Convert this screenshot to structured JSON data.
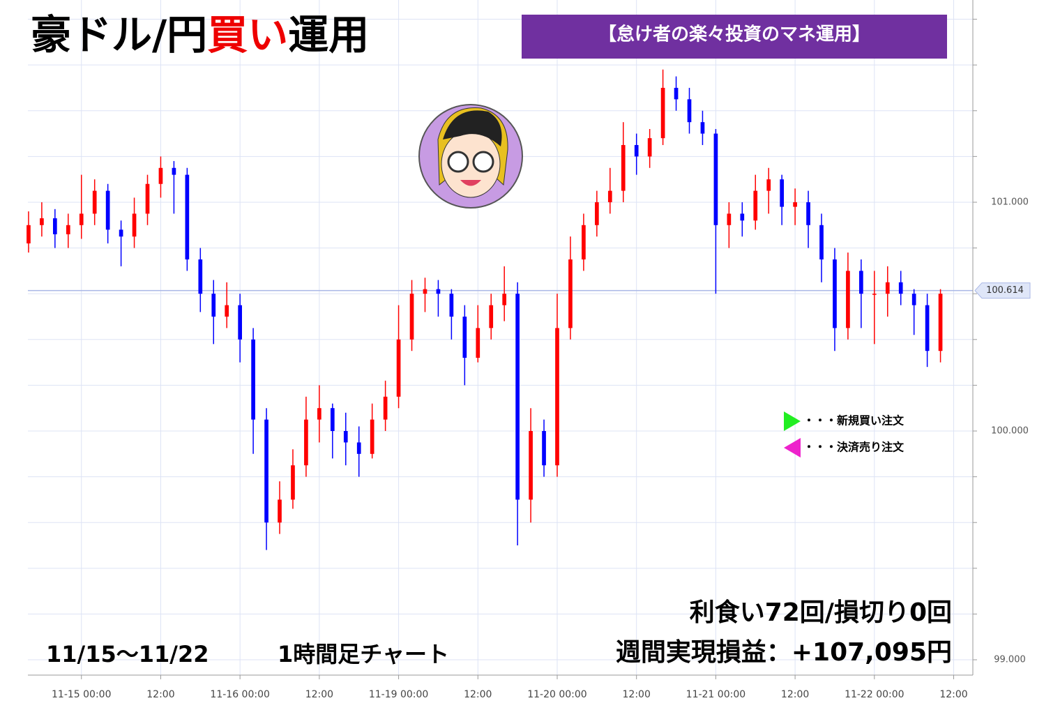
{
  "chart_data": {
    "type": "candlestick",
    "title_parts": [
      {
        "text": "豪ドル/円",
        "color": "#000000"
      },
      {
        "text": "買い",
        "color": "#ee0000"
      },
      {
        "text": "運用",
        "color": "#000000"
      }
    ],
    "banner": "【怠け者の楽々投資のマネ運用】",
    "period": "11/15～11/22",
    "timeframe": "1時間足チャート",
    "stats": "利食い72回/損切り0回",
    "profit": "週間実現損益：+107,095円",
    "up_color": "#ff0000",
    "down_color": "#0000ff",
    "x": [
      -8,
      -6,
      -4,
      -2,
      0,
      2,
      4,
      6,
      8,
      10,
      12,
      14,
      16,
      18,
      20,
      22,
      24,
      26,
      28,
      30,
      32,
      34,
      36,
      38,
      40,
      42,
      44,
      46,
      48,
      50,
      52,
      54,
      56,
      58,
      60,
      62,
      64,
      66,
      68,
      70,
      72,
      74,
      76,
      78,
      80,
      82,
      84,
      86,
      88,
      90,
      92,
      94,
      96,
      98,
      100,
      102,
      104,
      106,
      108,
      110,
      112,
      114,
      116,
      118,
      120,
      122,
      124,
      126,
      128,
      130
    ],
    "ohlc": [
      [
        100.82,
        100.96,
        100.78,
        100.9
      ],
      [
        100.9,
        101.0,
        100.85,
        100.93
      ],
      [
        100.93,
        100.97,
        100.8,
        100.86
      ],
      [
        100.86,
        100.95,
        100.8,
        100.9
      ],
      [
        100.9,
        101.12,
        100.84,
        100.95
      ],
      [
        100.95,
        101.1,
        100.9,
        101.05
      ],
      [
        101.05,
        101.08,
        100.82,
        100.88
      ],
      [
        100.88,
        100.92,
        100.72,
        100.85
      ],
      [
        100.85,
        101.02,
        100.8,
        100.95
      ],
      [
        100.95,
        101.12,
        100.9,
        101.08
      ],
      [
        101.08,
        101.2,
        101.02,
        101.15
      ],
      [
        101.15,
        101.18,
        100.95,
        101.12
      ],
      [
        101.12,
        101.15,
        100.7,
        100.75
      ],
      [
        100.75,
        100.8,
        100.52,
        100.6
      ],
      [
        100.6,
        100.66,
        100.38,
        100.5
      ],
      [
        100.5,
        100.65,
        100.45,
        100.55
      ],
      [
        100.55,
        100.6,
        100.3,
        100.4
      ],
      [
        100.4,
        100.45,
        99.9,
        100.05
      ],
      [
        100.05,
        100.1,
        99.48,
        99.6
      ],
      [
        99.6,
        99.78,
        99.55,
        99.7
      ],
      [
        99.7,
        99.92,
        99.66,
        99.85
      ],
      [
        99.85,
        100.15,
        99.8,
        100.05
      ],
      [
        100.05,
        100.2,
        99.95,
        100.1
      ],
      [
        100.1,
        100.12,
        99.88,
        100.0
      ],
      [
        100.0,
        100.08,
        99.85,
        99.95
      ],
      [
        99.95,
        100.02,
        99.8,
        99.9
      ],
      [
        99.9,
        100.12,
        99.88,
        100.05
      ],
      [
        100.05,
        100.22,
        100.0,
        100.15
      ],
      [
        100.15,
        100.55,
        100.1,
        100.4
      ],
      [
        100.4,
        100.66,
        100.35,
        100.6
      ],
      [
        100.6,
        100.67,
        100.52,
        100.62
      ],
      [
        100.62,
        100.66,
        100.5,
        100.6
      ],
      [
        100.6,
        100.62,
        100.4,
        100.5
      ],
      [
        100.5,
        100.55,
        100.2,
        100.32
      ],
      [
        100.32,
        100.55,
        100.3,
        100.45
      ],
      [
        100.45,
        100.6,
        100.4,
        100.55
      ],
      [
        100.55,
        100.72,
        100.48,
        100.6
      ],
      [
        100.6,
        100.65,
        99.5,
        99.7
      ],
      [
        99.7,
        100.1,
        99.6,
        100.0
      ],
      [
        100.0,
        100.05,
        99.8,
        99.85
      ],
      [
        99.85,
        100.6,
        99.8,
        100.45
      ],
      [
        100.45,
        100.85,
        100.4,
        100.75
      ],
      [
        100.75,
        100.95,
        100.7,
        100.9
      ],
      [
        100.9,
        101.05,
        100.85,
        101.0
      ],
      [
        101.0,
        101.15,
        100.95,
        101.05
      ],
      [
        101.05,
        101.35,
        101.0,
        101.25
      ],
      [
        101.25,
        101.3,
        101.12,
        101.2
      ],
      [
        101.2,
        101.32,
        101.15,
        101.28
      ],
      [
        101.28,
        101.58,
        101.25,
        101.5
      ],
      [
        101.5,
        101.55,
        101.4,
        101.45
      ],
      [
        101.45,
        101.5,
        101.3,
        101.35
      ],
      [
        101.35,
        101.4,
        101.25,
        101.3
      ],
      [
        101.3,
        101.32,
        100.6,
        100.9
      ],
      [
        100.9,
        101.0,
        100.8,
        100.95
      ],
      [
        100.95,
        101.0,
        100.85,
        100.92
      ],
      [
        100.92,
        101.12,
        100.88,
        101.05
      ],
      [
        101.05,
        101.15,
        100.95,
        101.1
      ],
      [
        101.1,
        101.12,
        100.9,
        100.98
      ],
      [
        100.98,
        101.06,
        100.9,
        101.0
      ],
      [
        101.0,
        101.05,
        100.8,
        100.9
      ],
      [
        100.9,
        100.95,
        100.65,
        100.75
      ],
      [
        100.75,
        100.8,
        100.35,
        100.45
      ],
      [
        100.45,
        100.78,
        100.4,
        100.7
      ],
      [
        100.7,
        100.75,
        100.45,
        100.6
      ],
      [
        100.6,
        100.7,
        100.38,
        100.6
      ],
      [
        100.6,
        100.72,
        100.5,
        100.65
      ],
      [
        100.65,
        100.7,
        100.55,
        100.6
      ],
      [
        100.6,
        100.62,
        100.42,
        100.55
      ],
      [
        100.55,
        100.6,
        100.28,
        100.35
      ],
      [
        100.35,
        100.62,
        100.3,
        100.6
      ]
    ],
    "xlim": [
      -8.1,
      134.9
    ],
    "xticks": [
      {
        "value": 0,
        "label": "11-15 00:00"
      },
      {
        "value": 12,
        "label": "12:00"
      },
      {
        "value": 24,
        "label": "11-16 00:00"
      },
      {
        "value": 36,
        "label": "12:00"
      },
      {
        "value": 48,
        "label": "11-19 00:00"
      },
      {
        "value": 60,
        "label": "12:00"
      },
      {
        "value": 72,
        "label": "11-20 00:00"
      },
      {
        "value": 84,
        "label": "12:00"
      },
      {
        "value": 96,
        "label": "11-21 00:00"
      },
      {
        "value": 108,
        "label": "12:00"
      },
      {
        "value": 120,
        "label": "11-22 00:00"
      },
      {
        "value": 132,
        "label": "12:00"
      }
    ],
    "ylim": [
      98.933,
      101.884
    ],
    "yticks": [
      {
        "value": 99,
        "label": "99.000"
      },
      {
        "value": 100,
        "label": "100.000"
      },
      {
        "value": 101,
        "label": "101.000"
      }
    ],
    "yminorticks": [
      99.2,
      99.4,
      99.6,
      99.8,
      100.2,
      100.4,
      100.6,
      100.8,
      101.2,
      101.4,
      101.6,
      101.8
    ],
    "last_price": 100.614,
    "grid": true,
    "legend": [
      {
        "name": "・・・新規買い注文",
        "color": "#22ee22"
      },
      {
        "name": "・・・決済売り注文",
        "color": "#ee22cc"
      }
    ]
  }
}
